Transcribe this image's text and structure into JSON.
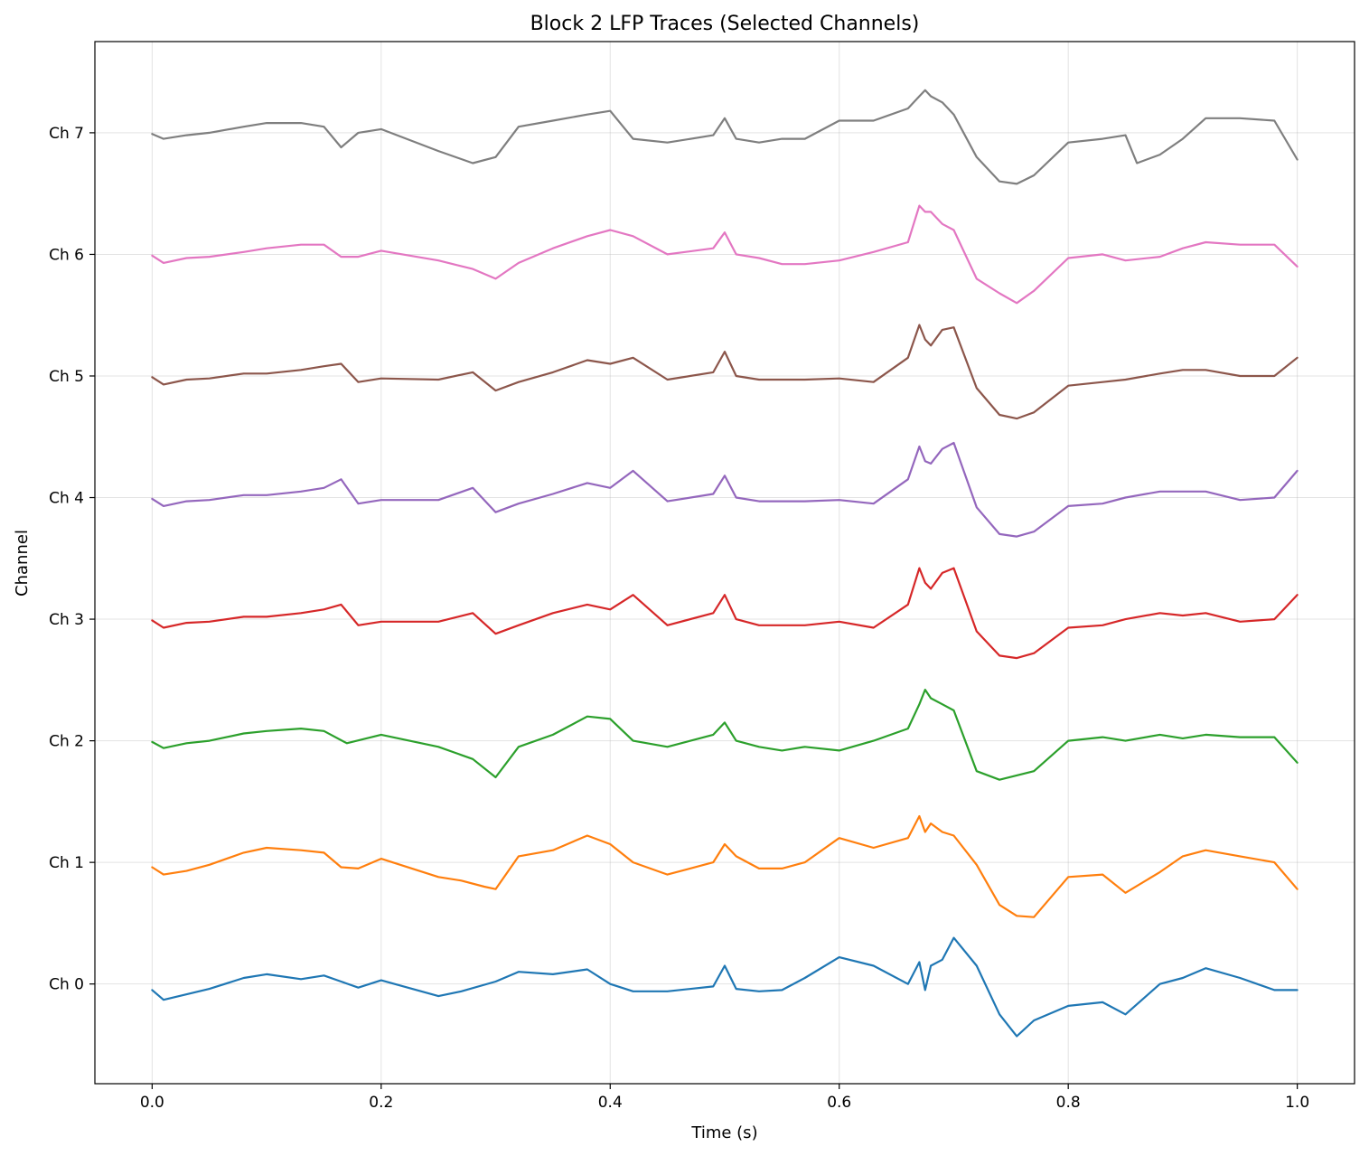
{
  "chart_data": {
    "type": "line",
    "title": "Block 2 LFP Traces (Selected Channels)",
    "xlabel": "Time (s)",
    "ylabel": "Channel",
    "xlim": [
      -0.05,
      1.05
    ],
    "ylim": [
      -0.82,
      7.75
    ],
    "x_ticks": [
      0.0,
      0.2,
      0.4,
      0.6,
      0.8,
      1.0
    ],
    "x_tick_labels": [
      "0.0",
      "0.2",
      "0.4",
      "0.6",
      "0.8",
      "1.0"
    ],
    "y_ticks": [
      0,
      1,
      2,
      3,
      4,
      5,
      6,
      7
    ],
    "y_tick_labels": [
      "Ch 0",
      "Ch 1",
      "Ch 2",
      "Ch 3",
      "Ch 4",
      "Ch 5",
      "Ch 6",
      "Ch 7"
    ],
    "grid": true,
    "series": [
      {
        "color": "#1f77b4",
        "offset": 0,
        "x": [
          0,
          0.01,
          0.05,
          0.08,
          0.1,
          0.13,
          0.15,
          0.165,
          0.18,
          0.2,
          0.25,
          0.27,
          0.3,
          0.32,
          0.35,
          0.38,
          0.4,
          0.42,
          0.45,
          0.49,
          0.5,
          0.51,
          0.53,
          0.55,
          0.57,
          0.6,
          0.63,
          0.66,
          0.67,
          0.675,
          0.68,
          0.69,
          0.7,
          0.72,
          0.74,
          0.755,
          0.77,
          0.8,
          0.83,
          0.85,
          0.88,
          0.9,
          0.92,
          0.95,
          0.98,
          1.0
        ],
        "y": [
          -0.05,
          -0.13,
          -0.04,
          0.05,
          0.08,
          0.04,
          0.07,
          0.02,
          -0.03,
          0.03,
          -0.1,
          -0.06,
          0.02,
          0.1,
          0.08,
          0.12,
          0.0,
          -0.06,
          -0.06,
          -0.02,
          0.15,
          -0.04,
          -0.06,
          -0.05,
          0.05,
          0.22,
          0.15,
          0.0,
          0.18,
          -0.05,
          0.15,
          0.2,
          0.38,
          0.15,
          -0.25,
          -0.43,
          -0.3,
          -0.18,
          -0.15,
          -0.25,
          0.0,
          0.05,
          0.13,
          0.05,
          -0.05,
          -0.05
        ]
      },
      {
        "color": "#ff7f0e",
        "offset": 1,
        "x": [
          0,
          0.01,
          0.03,
          0.05,
          0.08,
          0.1,
          0.13,
          0.15,
          0.165,
          0.18,
          0.2,
          0.25,
          0.27,
          0.29,
          0.3,
          0.32,
          0.35,
          0.38,
          0.4,
          0.42,
          0.45,
          0.49,
          0.5,
          0.51,
          0.53,
          0.55,
          0.57,
          0.6,
          0.63,
          0.66,
          0.67,
          0.675,
          0.68,
          0.69,
          0.7,
          0.72,
          0.74,
          0.755,
          0.77,
          0.8,
          0.83,
          0.85,
          0.88,
          0.9,
          0.92,
          0.95,
          0.98,
          1.0
        ],
        "y": [
          0.96,
          0.9,
          0.93,
          0.98,
          1.08,
          1.12,
          1.1,
          1.08,
          0.96,
          0.95,
          1.03,
          0.88,
          0.85,
          0.8,
          0.78,
          1.05,
          1.1,
          1.22,
          1.15,
          1.0,
          0.9,
          1.0,
          1.15,
          1.05,
          0.95,
          0.95,
          1.0,
          1.2,
          1.12,
          1.2,
          1.38,
          1.25,
          1.32,
          1.25,
          1.22,
          0.98,
          0.65,
          0.56,
          0.55,
          0.88,
          0.9,
          0.75,
          0.92,
          1.05,
          1.1,
          1.05,
          1.0,
          0.78
        ]
      },
      {
        "color": "#2ca02c",
        "offset": 2,
        "x": [
          0,
          0.01,
          0.03,
          0.05,
          0.08,
          0.1,
          0.13,
          0.15,
          0.17,
          0.2,
          0.25,
          0.28,
          0.3,
          0.32,
          0.35,
          0.38,
          0.4,
          0.42,
          0.45,
          0.49,
          0.5,
          0.51,
          0.53,
          0.55,
          0.57,
          0.6,
          0.63,
          0.66,
          0.67,
          0.675,
          0.68,
          0.69,
          0.7,
          0.72,
          0.74,
          0.77,
          0.8,
          0.83,
          0.85,
          0.88,
          0.9,
          0.92,
          0.95,
          0.98,
          1.0
        ],
        "y": [
          1.99,
          1.94,
          1.98,
          2.0,
          2.06,
          2.08,
          2.1,
          2.08,
          1.98,
          2.05,
          1.95,
          1.85,
          1.7,
          1.95,
          2.05,
          2.2,
          2.18,
          2.0,
          1.95,
          2.05,
          2.15,
          2.0,
          1.95,
          1.92,
          1.95,
          1.92,
          2.0,
          2.1,
          2.3,
          2.42,
          2.35,
          2.3,
          2.25,
          1.75,
          1.68,
          1.75,
          2.0,
          2.03,
          2.0,
          2.05,
          2.02,
          2.05,
          2.03,
          2.03,
          1.82
        ]
      },
      {
        "color": "#d62728",
        "offset": 3,
        "x": [
          0,
          0.01,
          0.03,
          0.05,
          0.08,
          0.1,
          0.13,
          0.15,
          0.165,
          0.18,
          0.2,
          0.25,
          0.28,
          0.3,
          0.32,
          0.35,
          0.38,
          0.4,
          0.42,
          0.45,
          0.49,
          0.5,
          0.51,
          0.53,
          0.55,
          0.57,
          0.6,
          0.63,
          0.66,
          0.67,
          0.675,
          0.68,
          0.69,
          0.7,
          0.72,
          0.74,
          0.755,
          0.77,
          0.8,
          0.83,
          0.85,
          0.88,
          0.9,
          0.92,
          0.95,
          0.98,
          1.0
        ],
        "y": [
          2.99,
          2.93,
          2.97,
          2.98,
          3.02,
          3.02,
          3.05,
          3.08,
          3.12,
          2.95,
          2.98,
          2.98,
          3.05,
          2.88,
          2.95,
          3.05,
          3.12,
          3.08,
          3.2,
          2.95,
          3.05,
          3.2,
          3.0,
          2.95,
          2.95,
          2.95,
          2.98,
          2.93,
          3.12,
          3.42,
          3.3,
          3.25,
          3.38,
          3.42,
          2.9,
          2.7,
          2.68,
          2.72,
          2.93,
          2.95,
          3.0,
          3.05,
          3.03,
          3.05,
          2.98,
          3.0,
          3.2
        ]
      },
      {
        "color": "#9467bd",
        "offset": 4,
        "x": [
          0,
          0.01,
          0.03,
          0.05,
          0.08,
          0.1,
          0.13,
          0.15,
          0.165,
          0.18,
          0.2,
          0.25,
          0.28,
          0.3,
          0.32,
          0.35,
          0.38,
          0.4,
          0.42,
          0.45,
          0.49,
          0.5,
          0.51,
          0.53,
          0.55,
          0.57,
          0.6,
          0.63,
          0.66,
          0.67,
          0.675,
          0.68,
          0.69,
          0.7,
          0.72,
          0.74,
          0.755,
          0.77,
          0.8,
          0.83,
          0.85,
          0.88,
          0.9,
          0.92,
          0.95,
          0.98,
          1.0
        ],
        "y": [
          3.99,
          3.93,
          3.97,
          3.98,
          4.02,
          4.02,
          4.05,
          4.08,
          4.15,
          3.95,
          3.98,
          3.98,
          4.08,
          3.88,
          3.95,
          4.03,
          4.12,
          4.08,
          4.22,
          3.97,
          4.03,
          4.18,
          4.0,
          3.97,
          3.97,
          3.97,
          3.98,
          3.95,
          4.15,
          4.42,
          4.3,
          4.28,
          4.4,
          4.45,
          3.92,
          3.7,
          3.68,
          3.72,
          3.93,
          3.95,
          4.0,
          4.05,
          4.05,
          4.05,
          3.98,
          4.0,
          4.22
        ]
      },
      {
        "color": "#8c564b",
        "offset": 5,
        "x": [
          0,
          0.01,
          0.03,
          0.05,
          0.08,
          0.1,
          0.13,
          0.15,
          0.165,
          0.18,
          0.2,
          0.25,
          0.28,
          0.3,
          0.32,
          0.35,
          0.38,
          0.4,
          0.42,
          0.45,
          0.49,
          0.5,
          0.51,
          0.53,
          0.55,
          0.57,
          0.6,
          0.63,
          0.66,
          0.67,
          0.675,
          0.68,
          0.69,
          0.7,
          0.72,
          0.74,
          0.755,
          0.77,
          0.8,
          0.83,
          0.85,
          0.88,
          0.9,
          0.92,
          0.95,
          0.98,
          1.0
        ],
        "y": [
          4.99,
          4.93,
          4.97,
          4.98,
          5.02,
          5.02,
          5.05,
          5.08,
          5.1,
          4.95,
          4.98,
          4.97,
          5.03,
          4.88,
          4.95,
          5.03,
          5.13,
          5.1,
          5.15,
          4.97,
          5.03,
          5.2,
          5.0,
          4.97,
          4.97,
          4.97,
          4.98,
          4.95,
          5.15,
          5.42,
          5.3,
          5.25,
          5.38,
          5.4,
          4.9,
          4.68,
          4.65,
          4.7,
          4.92,
          4.95,
          4.97,
          5.02,
          5.05,
          5.05,
          5.0,
          5.0,
          5.15
        ]
      },
      {
        "color": "#e377c2",
        "offset": 6,
        "x": [
          0,
          0.01,
          0.03,
          0.05,
          0.08,
          0.1,
          0.13,
          0.15,
          0.165,
          0.18,
          0.2,
          0.25,
          0.28,
          0.3,
          0.32,
          0.35,
          0.38,
          0.4,
          0.42,
          0.45,
          0.49,
          0.5,
          0.51,
          0.53,
          0.55,
          0.57,
          0.6,
          0.63,
          0.66,
          0.67,
          0.675,
          0.68,
          0.69,
          0.7,
          0.72,
          0.74,
          0.755,
          0.77,
          0.8,
          0.83,
          0.85,
          0.88,
          0.9,
          0.92,
          0.95,
          0.98,
          1.0
        ],
        "y": [
          5.99,
          5.93,
          5.97,
          5.98,
          6.02,
          6.05,
          6.08,
          6.08,
          5.98,
          5.98,
          6.03,
          5.95,
          5.88,
          5.8,
          5.93,
          6.05,
          6.15,
          6.2,
          6.15,
          6.0,
          6.05,
          6.18,
          6.0,
          5.97,
          5.92,
          5.92,
          5.95,
          6.02,
          6.1,
          6.4,
          6.35,
          6.35,
          6.25,
          6.2,
          5.8,
          5.68,
          5.6,
          5.7,
          5.97,
          6.0,
          5.95,
          5.98,
          6.05,
          6.1,
          6.08,
          6.08,
          5.9
        ]
      },
      {
        "color": "#7f7f7f",
        "offset": 7,
        "x": [
          0,
          0.01,
          0.03,
          0.05,
          0.08,
          0.1,
          0.13,
          0.15,
          0.165,
          0.18,
          0.2,
          0.25,
          0.28,
          0.3,
          0.32,
          0.35,
          0.38,
          0.4,
          0.42,
          0.45,
          0.49,
          0.5,
          0.51,
          0.53,
          0.55,
          0.57,
          0.6,
          0.63,
          0.66,
          0.67,
          0.675,
          0.68,
          0.69,
          0.7,
          0.72,
          0.74,
          0.755,
          0.77,
          0.8,
          0.83,
          0.85,
          0.86,
          0.88,
          0.9,
          0.92,
          0.95,
          0.98,
          1.0
        ],
        "y": [
          6.99,
          6.95,
          6.98,
          7.0,
          7.05,
          7.08,
          7.08,
          7.05,
          6.88,
          7.0,
          7.03,
          6.85,
          6.75,
          6.8,
          7.05,
          7.1,
          7.15,
          7.18,
          6.95,
          6.92,
          6.98,
          7.12,
          6.95,
          6.92,
          6.95,
          6.95,
          7.1,
          7.1,
          7.2,
          7.3,
          7.35,
          7.3,
          7.25,
          7.15,
          6.8,
          6.6,
          6.58,
          6.65,
          6.92,
          6.95,
          6.98,
          6.75,
          6.82,
          6.95,
          7.12,
          7.12,
          7.1,
          6.78
        ]
      }
    ]
  }
}
